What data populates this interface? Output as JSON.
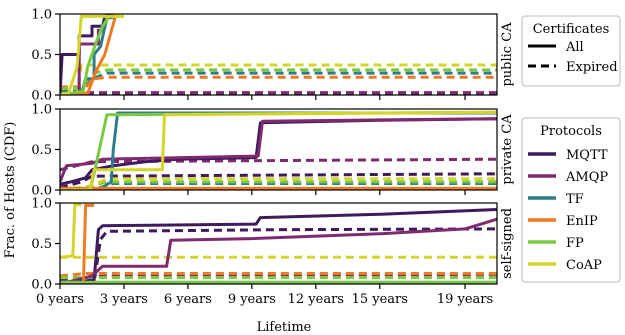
{
  "chart_data": {
    "type": "line",
    "xlabel": "Lifetime",
    "ylabel": "Frac. of Hosts (CDF)",
    "xlim": [
      0,
      20.5
    ],
    "ylim": [
      0,
      1
    ],
    "xticks": [
      0,
      3,
      6,
      9,
      12,
      15,
      19
    ],
    "xtick_labels": [
      "0 years",
      "3 years",
      "6 years",
      "9 years",
      "12 years",
      "15 years",
      "19 years"
    ],
    "yticks": [
      0,
      0.5,
      1
    ],
    "ytick_labels": [
      "0.0",
      "0.5",
      "1.0"
    ],
    "legends": {
      "certificates": {
        "title": "Certificates",
        "entries": [
          {
            "label": "All",
            "style": "solid"
          },
          {
            "label": "Expired",
            "style": "dashed"
          }
        ]
      },
      "protocols": {
        "title": "Protocols",
        "entries": [
          {
            "label": "MQTT",
            "color": "#3f1b5e"
          },
          {
            "label": "AMQP",
            "color": "#7f2a6e"
          },
          {
            "label": "TF",
            "color": "#2e7d8c"
          },
          {
            "label": "EnIP",
            "color": "#f07a20"
          },
          {
            "label": "FP",
            "color": "#7ac943"
          },
          {
            "label": "CoAP",
            "color": "#d4d42a"
          }
        ]
      }
    },
    "panels": [
      {
        "label": "public CA",
        "series": [
          {
            "protocol": "MQTT",
            "style": "solid",
            "points": [
              [
                0,
                0
              ],
              [
                0.1,
                0.5
              ],
              [
                0.9,
                0.5
              ],
              [
                0.9,
                0.73
              ],
              [
                1.5,
                0.73
              ],
              [
                1.5,
                0.85
              ],
              [
                2.0,
                0.85
              ],
              [
                2.1,
                0.97
              ],
              [
                2.5,
                0.98
              ]
            ]
          },
          {
            "protocol": "AMQP",
            "style": "solid",
            "points": [
              [
                0,
                0
              ],
              [
                0.9,
                0
              ],
              [
                0.9,
                0.63
              ],
              [
                1.8,
                0.63
              ],
              [
                1.8,
                0.8
              ],
              [
                2.0,
                0.8
              ],
              [
                2.2,
                0.95
              ],
              [
                2.5,
                0.98
              ]
            ]
          },
          {
            "protocol": "TF",
            "style": "solid",
            "points": [
              [
                0,
                0
              ],
              [
                1.0,
                0
              ],
              [
                1.2,
                0.2
              ],
              [
                1.6,
                0.2
              ],
              [
                1.6,
                0.5
              ],
              [
                1.9,
                0.6
              ],
              [
                2.2,
                0.95
              ],
              [
                2.6,
                0.96
              ]
            ]
          },
          {
            "protocol": "EnIP",
            "style": "solid",
            "points": [
              [
                0,
                0
              ],
              [
                1.3,
                0.02
              ],
              [
                1.7,
                0.3
              ],
              [
                2.1,
                0.5
              ],
              [
                2.6,
                0.97
              ]
            ]
          },
          {
            "protocol": "FP",
            "style": "solid",
            "points": [
              [
                0,
                0
              ],
              [
                1.1,
                0.05
              ],
              [
                1.3,
                0.35
              ],
              [
                1.7,
                0.65
              ],
              [
                2.0,
                0.85
              ],
              [
                2.3,
                0.97
              ],
              [
                3.0,
                0.97
              ]
            ]
          },
          {
            "protocol": "CoAP",
            "style": "solid",
            "points": [
              [
                0,
                0
              ],
              [
                0.4,
                0.02
              ],
              [
                0.8,
                0.35
              ],
              [
                1.0,
                0.97
              ],
              [
                3.0,
                0.97
              ]
            ]
          },
          {
            "protocol": "MQTT",
            "style": "dashed",
            "points": [
              [
                0,
                0.02
              ],
              [
                20.5,
                0.02
              ]
            ]
          },
          {
            "protocol": "AMQP",
            "style": "dashed",
            "points": [
              [
                0,
                0.03
              ],
              [
                20.5,
                0.03
              ]
            ]
          },
          {
            "protocol": "TF",
            "style": "dashed",
            "points": [
              [
                0,
                0.05
              ],
              [
                0.8,
                0.05
              ],
              [
                1.5,
                0.2
              ],
              [
                2.2,
                0.27
              ],
              [
                20.5,
                0.27
              ]
            ]
          },
          {
            "protocol": "EnIP",
            "style": "dashed",
            "points": [
              [
                0,
                0.1
              ],
              [
                1.2,
                0.1
              ],
              [
                1.6,
                0.2
              ],
              [
                2.2,
                0.22
              ],
              [
                20.5,
                0.22
              ]
            ]
          },
          {
            "protocol": "FP",
            "style": "dashed",
            "points": [
              [
                0,
                0.08
              ],
              [
                0.9,
                0.08
              ],
              [
                1.6,
                0.27
              ],
              [
                2.2,
                0.31
              ],
              [
                20.5,
                0.31
              ]
            ]
          },
          {
            "protocol": "CoAP",
            "style": "dashed",
            "points": [
              [
                0,
                0.02
              ],
              [
                0.8,
                0.02
              ],
              [
                1.0,
                0.37
              ],
              [
                20.5,
                0.37
              ]
            ]
          }
        ]
      },
      {
        "label": "private CA",
        "series": [
          {
            "protocol": "MQTT",
            "style": "solid",
            "points": [
              [
                0,
                0.07
              ],
              [
                0.5,
                0.1
              ],
              [
                1.2,
                0.15
              ],
              [
                1.5,
                0.25
              ],
              [
                2.5,
                0.3
              ],
              [
                4.0,
                0.35
              ],
              [
                5.5,
                0.38
              ],
              [
                9.2,
                0.4
              ],
              [
                9.4,
                0.83
              ],
              [
                15,
                0.86
              ],
              [
                20.5,
                0.88
              ]
            ]
          },
          {
            "protocol": "AMQP",
            "style": "solid",
            "points": [
              [
                0,
                0.1
              ],
              [
                0.3,
                0.3
              ],
              [
                1.5,
                0.33
              ],
              [
                2.0,
                0.38
              ],
              [
                9.3,
                0.42
              ],
              [
                9.5,
                0.85
              ],
              [
                20.5,
                0.88
              ]
            ]
          },
          {
            "protocol": "TF",
            "style": "solid",
            "points": [
              [
                0,
                0
              ],
              [
                1.8,
                0
              ],
              [
                2.4,
                0.1
              ],
              [
                2.5,
                0.5
              ],
              [
                2.7,
                0.95
              ],
              [
                20.5,
                0.95
              ]
            ]
          },
          {
            "protocol": "EnIP",
            "style": "solid",
            "points": [
              [
                0,
                0.02
              ],
              [
                20.5,
                0.02
              ]
            ]
          },
          {
            "protocol": "FP",
            "style": "solid",
            "points": [
              [
                0,
                0
              ],
              [
                1.4,
                0
              ],
              [
                1.6,
                0.2
              ],
              [
                2.2,
                0.93
              ],
              [
                20.5,
                0.96
              ]
            ]
          },
          {
            "protocol": "CoAP",
            "style": "solid",
            "points": [
              [
                0,
                0
              ],
              [
                1.4,
                0
              ],
              [
                1.6,
                0.25
              ],
              [
                4.8,
                0.25
              ],
              [
                4.9,
                0.93
              ],
              [
                20.5,
                0.96
              ]
            ]
          },
          {
            "protocol": "MQTT",
            "style": "dashed",
            "points": [
              [
                0,
                0.03
              ],
              [
                1.0,
                0.1
              ],
              [
                1.5,
                0.17
              ],
              [
                20.5,
                0.2
              ]
            ]
          },
          {
            "protocol": "AMQP",
            "style": "dashed",
            "points": [
              [
                0,
                0.25
              ],
              [
                1.5,
                0.35
              ],
              [
                20.5,
                0.38
              ]
            ]
          },
          {
            "protocol": "TF",
            "style": "dashed",
            "points": [
              [
                0,
                0
              ],
              [
                1.8,
                0.02
              ],
              [
                2.5,
                0.08
              ],
              [
                20.5,
                0.08
              ]
            ]
          },
          {
            "protocol": "EnIP",
            "style": "dashed",
            "points": [
              [
                0,
                0.02
              ],
              [
                20.5,
                0.02
              ]
            ]
          },
          {
            "protocol": "FP",
            "style": "dashed",
            "points": [
              [
                0,
                0
              ],
              [
                1.5,
                0.05
              ],
              [
                2.2,
                0.1
              ],
              [
                20.5,
                0.1
              ]
            ]
          },
          {
            "protocol": "CoAP",
            "style": "dashed",
            "points": [
              [
                0,
                0
              ],
              [
                1.5,
                0.05
              ],
              [
                2.2,
                0.14
              ],
              [
                20.5,
                0.14
              ]
            ]
          }
        ]
      },
      {
        "label": "self-signed",
        "series": [
          {
            "protocol": "MQTT",
            "style": "solid",
            "points": [
              [
                0,
                0
              ],
              [
                1.6,
                0.05
              ],
              [
                1.8,
                0.67
              ],
              [
                2.0,
                0.72
              ],
              [
                9.2,
                0.74
              ],
              [
                9.4,
                0.82
              ],
              [
                15,
                0.86
              ],
              [
                20.5,
                0.92
              ]
            ]
          },
          {
            "protocol": "AMQP",
            "style": "solid",
            "points": [
              [
                0,
                0
              ],
              [
                1.5,
                0.1
              ],
              [
                2.0,
                0.22
              ],
              [
                5.0,
                0.22
              ],
              [
                5.2,
                0.54
              ],
              [
                9.0,
                0.56
              ],
              [
                15,
                0.62
              ],
              [
                19,
                0.68
              ],
              [
                20.5,
                0.8
              ]
            ]
          },
          {
            "protocol": "TF",
            "style": "solid",
            "points": [
              [
                0,
                0.02
              ],
              [
                20.5,
                0.02
              ]
            ]
          },
          {
            "protocol": "EnIP",
            "style": "solid",
            "points": [
              [
                0,
                0
              ],
              [
                1.1,
                0
              ],
              [
                1.2,
                0.97
              ],
              [
                1.6,
                0.97
              ]
            ]
          },
          {
            "protocol": "FP",
            "style": "solid",
            "points": [
              [
                0,
                0.02
              ],
              [
                20.5,
                0.02
              ]
            ]
          },
          {
            "protocol": "CoAP",
            "style": "solid",
            "points": [
              [
                0,
                0.33
              ],
              [
                0.6,
                0.35
              ],
              [
                0.7,
                0.98
              ],
              [
                1.0,
                0.98
              ]
            ]
          },
          {
            "protocol": "MQTT",
            "style": "dashed",
            "points": [
              [
                0,
                0
              ],
              [
                1.6,
                0.02
              ],
              [
                1.9,
                0.55
              ],
              [
                2.2,
                0.65
              ],
              [
                10,
                0.67
              ],
              [
                20.5,
                0.68
              ]
            ]
          },
          {
            "protocol": "AMQP",
            "style": "dashed",
            "points": [
              [
                0,
                0.05
              ],
              [
                2.0,
                0.1
              ],
              [
                20.5,
                0.12
              ]
            ]
          },
          {
            "protocol": "TF",
            "style": "dashed",
            "points": [
              [
                0,
                0.02
              ],
              [
                20.5,
                0.02
              ]
            ]
          },
          {
            "protocol": "EnIP",
            "style": "dashed",
            "points": [
              [
                0,
                0.1
              ],
              [
                1.2,
                0.13
              ],
              [
                20.5,
                0.13
              ]
            ]
          },
          {
            "protocol": "FP",
            "style": "dashed",
            "points": [
              [
                0,
                0.08
              ],
              [
                20.5,
                0.08
              ]
            ]
          },
          {
            "protocol": "CoAP",
            "style": "dashed",
            "points": [
              [
                0,
                0.33
              ],
              [
                20.5,
                0.33
              ]
            ]
          }
        ]
      }
    ]
  }
}
